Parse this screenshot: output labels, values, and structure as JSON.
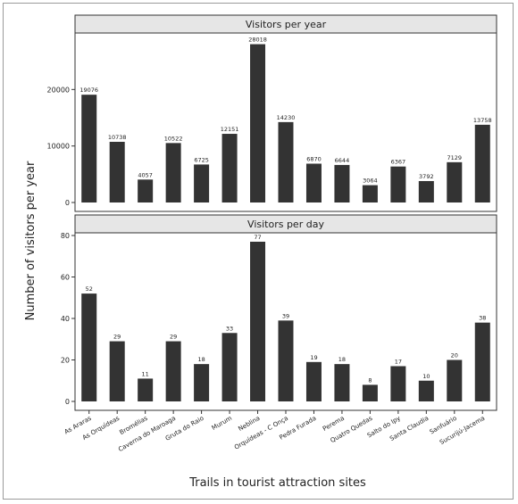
{
  "chart_data": {
    "type": "bar",
    "xlabel": "Trails in tourist attraction sites",
    "ylabel": "Number of visitors per year",
    "categories": [
      "As Araras",
      "As Orquídeas",
      "Bromélias",
      "Caverna do Maroaga",
      "Gruta do Raio",
      "Murum",
      "Neblina",
      "Orquídeas - C Onça",
      "Pedra Furada",
      "Perema",
      "Quatro Quedas",
      "Salto do Ipy",
      "Santa Claudia",
      "Sanfuário",
      "Sucurijú-Jacema"
    ],
    "panels": [
      {
        "title": "Visitors per year",
        "ylim": [
          0,
          30000
        ],
        "yticks": [
          0,
          10000,
          20000
        ],
        "values": [
          19076,
          10738,
          4057,
          10522,
          6725,
          12151,
          28018,
          14230,
          6870,
          6644,
          3064,
          6367,
          3792,
          7129,
          13758
        ],
        "value_labels": [
          "19076",
          "10738",
          "4057",
          "10522",
          "6725",
          "12151",
          "28018",
          "14230",
          "6870",
          "6644",
          "3064",
          "6367",
          "3792",
          "7129",
          "13758"
        ]
      },
      {
        "title": "Visitors per day",
        "ylim": [
          0,
          80
        ],
        "yticks": [
          0,
          20,
          40,
          60,
          80
        ],
        "values": [
          52,
          29,
          11,
          29,
          18,
          33,
          77,
          39,
          19,
          18,
          8,
          17,
          10,
          20,
          38
        ],
        "value_labels": [
          "52",
          "29",
          "11",
          "29",
          "18",
          "33",
          "77",
          "39",
          "19",
          "18",
          "8",
          "17",
          "10",
          "20",
          "38"
        ]
      }
    ],
    "bar_color": "#333333",
    "strip_color": "#e6e6e6",
    "grid": false
  }
}
